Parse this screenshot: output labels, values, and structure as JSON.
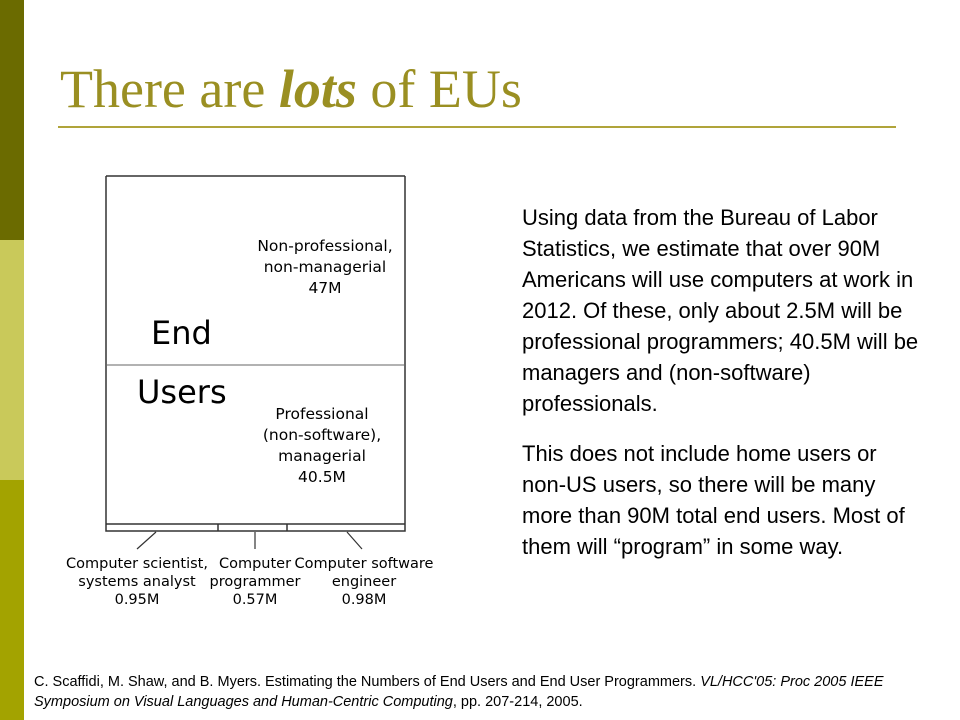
{
  "slide": {
    "title_pre": "There are ",
    "title_emph": "lots",
    "title_post": " of EUs"
  },
  "diagram": {
    "center_label_line1": "End",
    "center_label_line2": "Users",
    "top_block": {
      "line1": "Non-professional,",
      "line2": "non-managerial",
      "value": "47M"
    },
    "middle_block": {
      "line1": "Professional",
      "line2": "(non-software),",
      "line3": "managerial",
      "value": "40.5M"
    },
    "bottom_categories": [
      {
        "line1": "Computer scientist,",
        "line2": "systems analyst",
        "value": "0.95M"
      },
      {
        "line1": "Computer",
        "line2": "programmer",
        "value": "0.57M"
      },
      {
        "line1": "Computer software",
        "line2": "engineer",
        "value": "0.98M"
      }
    ]
  },
  "body": {
    "paragraph1": "Using data from the Bureau of Labor Statistics, we estimate that over 90M Americans will use computers at work in 2012. Of these, only about 2.5M will be professional programmers; 40.5M will be managers and (non-software) professionals.",
    "paragraph2": "This does not include home users or non-US users, so there will be many more than 90M total end users. Most of them will “program” in some way."
  },
  "citation": {
    "authors_title": "C. Scaffidi, M. Shaw, and B. Myers.  Estimating the Numbers of End Users and End User Programmers. ",
    "venue": "VL/HCC'05: Proc 2005 IEEE Symposium on Visual Languages and Human-Centric Computing",
    "pages": ", pp. 207-214, 2005."
  },
  "colors": {
    "bar_dark": "#6b6b00",
    "bar_light": "#c9c95a",
    "bar_mid": "#a3a300",
    "title": "#9a8f22",
    "rule": "#b0a43a"
  }
}
